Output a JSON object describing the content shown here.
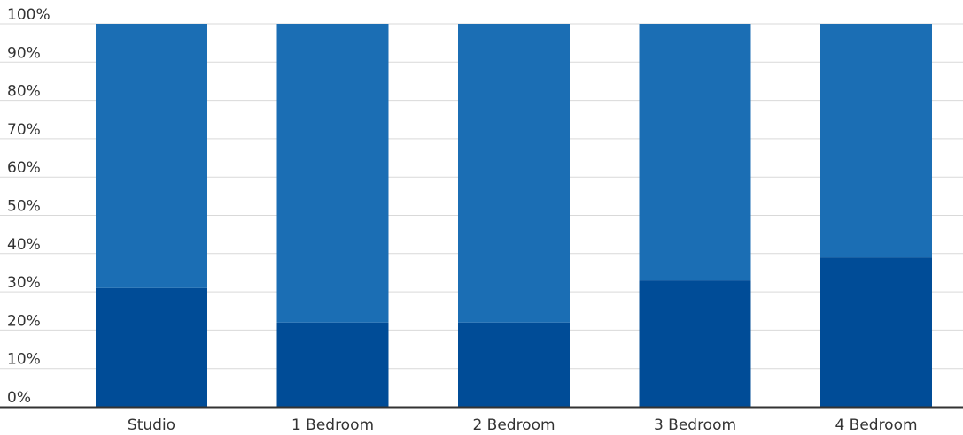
{
  "chart_data": {
    "type": "bar",
    "stacked": true,
    "categories": [
      "Studio",
      "1 Bedroom",
      "2 Bedroom",
      "3 Bedroom",
      "4 Bedroom"
    ],
    "series": [
      {
        "values": [
          31,
          22,
          22,
          33,
          39
        ],
        "color": "#004c97"
      },
      {
        "values": [
          69,
          78,
          78,
          67,
          61
        ],
        "color": "#1b6eb4"
      }
    ],
    "ylim": [
      0,
      100
    ],
    "y_ticks": [
      "0%",
      "10%",
      "20%",
      "30%",
      "40%",
      "50%",
      "60%",
      "70%",
      "80%",
      "90%",
      "100%"
    ],
    "grid": true,
    "legend": "none",
    "title": "",
    "xlabel": "",
    "ylabel": ""
  }
}
